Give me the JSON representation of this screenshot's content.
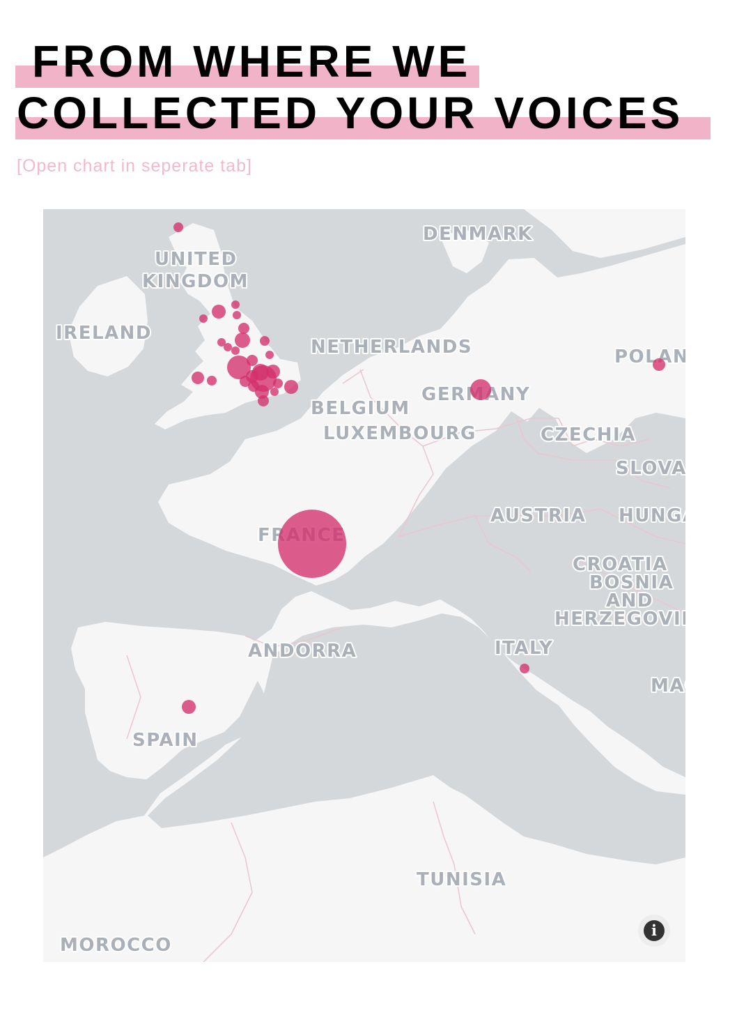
{
  "headline": {
    "line1": "FROM WHERE WE",
    "line2": "COLLECTED YOUR VOICES"
  },
  "open_link": "[Open chart in seperate tab]",
  "colors": {
    "highlight": "#f1b3c8",
    "marker": "#d3306c",
    "water": "#d5d8da",
    "land": "#f6f6f6",
    "label": "#a9b0b8",
    "border": "#e8c7cf"
  },
  "map": {
    "country_labels": [
      {
        "text": "DENMARK"
      },
      {
        "text": "UNITED"
      },
      {
        "text": "KINGDOM"
      },
      {
        "text": "IRELAND"
      },
      {
        "text": "NETHERLANDS"
      },
      {
        "text": "POLAN"
      },
      {
        "text": "GERMANY"
      },
      {
        "text": "BELGIUM"
      },
      {
        "text": "LUXEMBOURG"
      },
      {
        "text": "CZECHIA"
      },
      {
        "text": "SLOVAI"
      },
      {
        "text": "AUSTRIA"
      },
      {
        "text": "HUNGA"
      },
      {
        "text": "FRANCE"
      },
      {
        "text": "CROATIA"
      },
      {
        "text": "BOSNIA"
      },
      {
        "text": "AND"
      },
      {
        "text": "HERZEGOVIN"
      },
      {
        "text": "ANDORRA"
      },
      {
        "text": "ITALY"
      },
      {
        "text": "SPAIN"
      },
      {
        "text": "TUNISIA"
      },
      {
        "text": "MOROCCO"
      },
      {
        "text": "MAC"
      }
    ],
    "info_icon": "info-icon"
  }
}
